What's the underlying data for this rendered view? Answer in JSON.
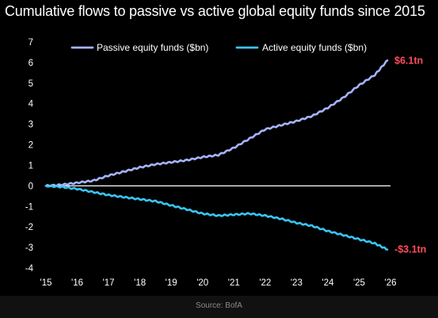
{
  "title": "Cumulative flows to passive vs active global equity funds since 2015",
  "source": "Source: BofA",
  "colors": {
    "background": "#000000",
    "passive": "#a5b4ff",
    "active": "#38c6f4",
    "zero_line": "#ffffff",
    "end_label": "#ff4d5e",
    "text": "#ffffff"
  },
  "chart_data": {
    "type": "line",
    "title": "Cumulative flows to passive vs active global equity funds since 2015",
    "xlabel": "",
    "ylabel": "",
    "x_ticks": [
      "'15",
      "'16",
      "'17",
      "'18",
      "'19",
      "'20",
      "'21",
      "'22",
      "'23",
      "'24",
      "'25",
      "'26"
    ],
    "x_tick_values": [
      2015,
      2016,
      2017,
      2018,
      2019,
      2020,
      2021,
      2022,
      2023,
      2024,
      2025,
      2026
    ],
    "xlim": [
      2015,
      2026
    ],
    "y_ticks": [
      "7",
      "6",
      "5",
      "4",
      "3",
      "2",
      "1",
      "0",
      "-1",
      "-2",
      "-3",
      "-4"
    ],
    "y_tick_values": [
      7,
      6,
      5,
      4,
      3,
      2,
      1,
      0,
      -1,
      -2,
      -3,
      -4
    ],
    "ylim": [
      -4,
      7
    ],
    "grid": false,
    "zero_line": true,
    "legend_position": "top-center",
    "series": [
      {
        "name": "Passive equity funds ($bn)",
        "color": "#a5b4ff",
        "end_label": "$6.1tn",
        "x": [
          2015.0,
          2015.5,
          2016.0,
          2016.5,
          2017.0,
          2017.5,
          2018.0,
          2018.5,
          2019.0,
          2019.5,
          2020.0,
          2020.5,
          2021.0,
          2021.5,
          2022.0,
          2022.5,
          2023.0,
          2023.5,
          2024.0,
          2024.5,
          2025.0,
          2025.5,
          2025.9
        ],
        "y": [
          0.0,
          0.05,
          0.15,
          0.25,
          0.5,
          0.7,
          0.9,
          1.05,
          1.15,
          1.25,
          1.4,
          1.5,
          1.85,
          2.3,
          2.75,
          2.95,
          3.15,
          3.4,
          3.8,
          4.3,
          4.9,
          5.4,
          6.1
        ]
      },
      {
        "name": "Active equity funds ($bn)",
        "color": "#38c6f4",
        "end_label": "-$3.1tn",
        "x": [
          2015.0,
          2015.5,
          2016.0,
          2016.5,
          2017.0,
          2017.5,
          2018.0,
          2018.5,
          2019.0,
          2019.5,
          2020.0,
          2020.5,
          2021.0,
          2021.5,
          2022.0,
          2022.5,
          2023.0,
          2023.5,
          2024.0,
          2024.5,
          2025.0,
          2025.5,
          2025.9
        ],
        "y": [
          0.0,
          -0.05,
          -0.15,
          -0.3,
          -0.45,
          -0.55,
          -0.65,
          -0.75,
          -0.95,
          -1.15,
          -1.35,
          -1.45,
          -1.4,
          -1.35,
          -1.45,
          -1.6,
          -1.8,
          -1.95,
          -2.2,
          -2.4,
          -2.6,
          -2.8,
          -3.1
        ]
      }
    ]
  }
}
